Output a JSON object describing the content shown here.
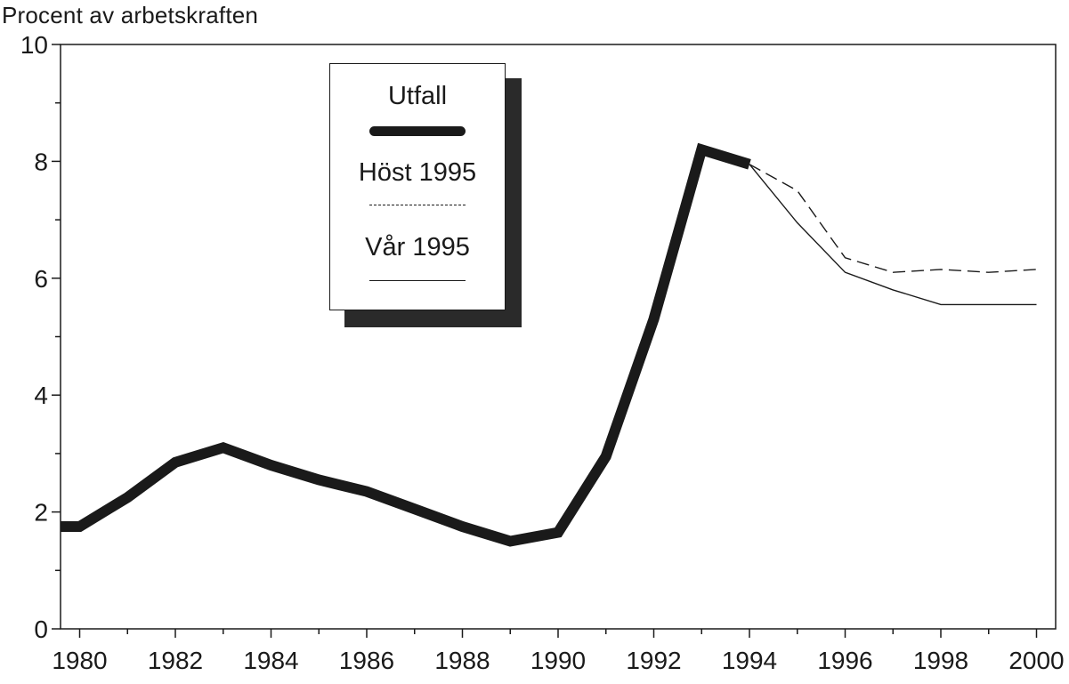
{
  "chart_data": {
    "type": "line",
    "ylabel": "Procent av arbetskraften",
    "ylim": [
      0,
      10
    ],
    "xlim": [
      1979.6,
      2000.4
    ],
    "yticks": [
      0,
      2,
      4,
      6,
      8,
      10
    ],
    "xticks": [
      1980,
      1982,
      1984,
      1986,
      1988,
      1990,
      1992,
      1994,
      1996,
      1998,
      2000
    ],
    "grid": false,
    "legend_position": "top-left",
    "series": [
      {
        "name": "Utfall",
        "style": "thick",
        "color": "#1a1a1a",
        "x": [
          1979.6,
          1980,
          1981,
          1982,
          1983,
          1984,
          1985,
          1986,
          1987,
          1988,
          1989,
          1990,
          1991,
          1992,
          1993,
          1994
        ],
        "y": [
          1.75,
          1.75,
          2.25,
          2.85,
          3.1,
          2.8,
          2.55,
          2.35,
          2.05,
          1.75,
          1.5,
          1.65,
          2.95,
          5.3,
          8.2,
          7.95
        ]
      },
      {
        "name": "Höst 1995",
        "style": "dashed",
        "color": "#1a1a1a",
        "x": [
          1994,
          1995,
          1996,
          1997,
          1998,
          1999,
          2000
        ],
        "y": [
          7.95,
          7.5,
          6.35,
          6.1,
          6.15,
          6.1,
          6.15
        ]
      },
      {
        "name": "Vår 1995",
        "style": "thin",
        "color": "#1a1a1a",
        "x": [
          1994,
          1995,
          1996,
          1997,
          1998,
          1999,
          2000
        ],
        "y": [
          7.95,
          6.95,
          6.1,
          5.8,
          5.55,
          5.55,
          5.55
        ]
      }
    ]
  }
}
